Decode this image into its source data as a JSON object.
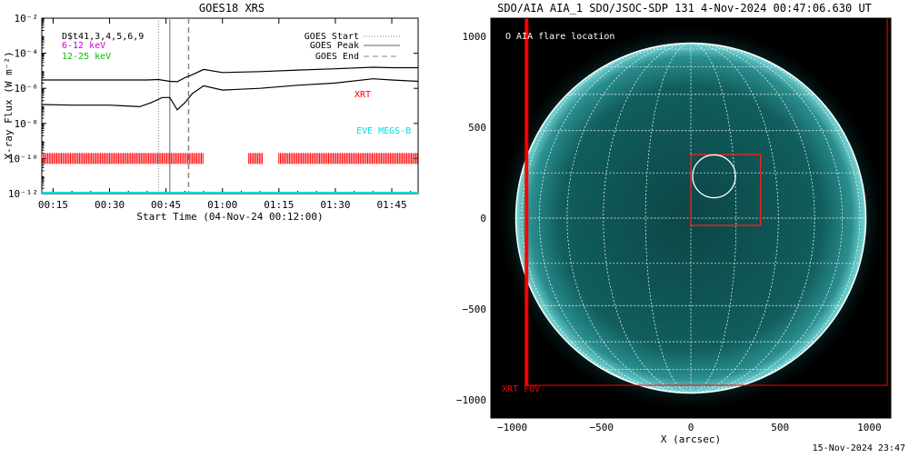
{
  "goes_panel": {
    "title": "GOES18 XRS",
    "ylabel": "X-ray Flux (W m⁻²)",
    "xlabel": "Start Time (04-Nov-24 00:12:00)",
    "det_label": "D$t41,3,4,5,6,9",
    "band_low": "6-12 keV",
    "band_high": "12-25 keV",
    "legend": {
      "start": "GOES Start",
      "peak": "GOES Peak",
      "end": "GOES End"
    },
    "xrt_label": "XRT",
    "eve_label": "EVE MEGS-B",
    "colors": {
      "band_low": "#d000d0",
      "band_high": "#00c000",
      "xrt": "#ff0000",
      "eve": "#00e0e0"
    }
  },
  "aia_panel": {
    "title": "SDO/AIA AIA_1 SDO/JSOC-SDP 131  4-Nov-2024 00:47:06.630 UT",
    "flare_legend": "O AIA flare location",
    "fov_label": "XRT FOV",
    "xlabel": "X (arcsec)",
    "colors": {
      "fov": "#ff0000",
      "grid": "#ffffff",
      "disk": "#0f5e5e"
    }
  },
  "footer_timestamp": "15-Nov-2024 23:47",
  "chart_data": [
    {
      "type": "line",
      "title": "GOES18 XRS",
      "xlabel": "Start Time (04-Nov-24 00:12:00)",
      "ylabel": "X-ray Flux (W m⁻²)",
      "y_scale": "log",
      "xlim": [
        "00:12",
        "01:52"
      ],
      "ylim": [
        1e-12,
        0.01
      ],
      "x_ticks": [
        "00:15",
        "00:30",
        "00:45",
        "01:00",
        "01:15",
        "01:30",
        "01:45"
      ],
      "y_ticks": [
        "10⁻¹²",
        "10⁻¹⁰",
        "10⁻⁸",
        "10⁻⁶",
        "10⁻⁴",
        "10⁻²"
      ],
      "series": [
        {
          "name": "12-25 keV",
          "color": "#000000",
          "x": [
            "00:12",
            "00:20",
            "00:30",
            "00:40",
            "00:43",
            "00:46",
            "00:48",
            "00:50",
            "00:52",
            "00:55",
            "01:00",
            "01:10",
            "01:20",
            "01:30",
            "01:40",
            "01:45",
            "01:52"
          ],
          "y": [
            3e-06,
            3e-06,
            3e-06,
            3e-06,
            3.2e-06,
            2.5e-06,
            2.4e-06,
            4e-06,
            6e-06,
            1.2e-05,
            8e-06,
            9e-06,
            1.1e-05,
            1.3e-05,
            1.6e-05,
            1.5e-05,
            1.5e-05
          ]
        },
        {
          "name": "6-12 keV",
          "color": "#000000",
          "x": [
            "00:12",
            "00:20",
            "00:30",
            "00:38",
            "00:41",
            "00:44",
            "00:46",
            "00:48",
            "00:50",
            "00:52",
            "00:55",
            "01:00",
            "01:10",
            "01:20",
            "01:30",
            "01:40",
            "01:45",
            "01:52"
          ],
          "y": [
            1.2e-07,
            1.1e-07,
            1.1e-07,
            9e-08,
            1.5e-07,
            3e-07,
            3e-07,
            6e-08,
            1.5e-07,
            5e-07,
            1.4e-06,
            8e-07,
            1e-06,
            1.5e-06,
            2e-06,
            3.5e-06,
            3e-06,
            2.5e-06
          ]
        }
      ],
      "markers": {
        "goes_start": "00:43",
        "goes_peak": "00:46",
        "goes_end": "00:51"
      },
      "xrt_coverage": [
        [
          "00:12",
          "00:55"
        ],
        [
          "01:07",
          "01:11"
        ],
        [
          "01:15",
          "01:52"
        ]
      ],
      "xrt_level": 1e-10,
      "eve_level": 1e-12
    },
    {
      "type": "scatter",
      "title": "SDO/AIA AIA_1 SDO/JSOC-SDP 131  4-Nov-2024 00:47:06.630 UT",
      "xlabel": "X (arcsec)",
      "xlim": [
        -1120,
        1120
      ],
      "ylim": [
        -1100,
        1100
      ],
      "x_ticks": [
        -1000,
        -500,
        0,
        500,
        1000
      ],
      "y_ticks": [
        -1000,
        -500,
        0,
        500,
        1000
      ],
      "disk_radius_arcsec": 980,
      "flare_location": {
        "x": 130,
        "y": 230
      },
      "flare_circle_radius_arcsec": 120,
      "flare_box": {
        "x1": 0,
        "x2": 390,
        "y1": -40,
        "y2": 350
      },
      "xrt_fov": {
        "x1": -920,
        "x2": 1100,
        "y1": -920,
        "y2": 1100
      }
    }
  ]
}
